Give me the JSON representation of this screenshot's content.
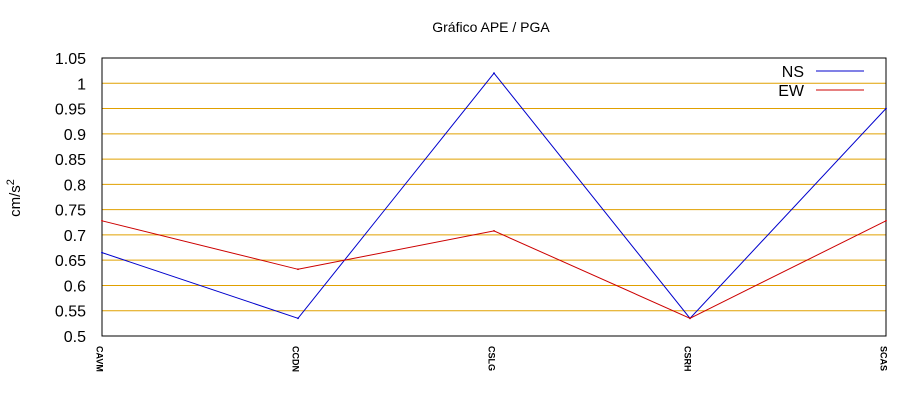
{
  "chart_data": {
    "type": "line",
    "title": "Gráfico  APE / PGA",
    "xlabel": "",
    "ylabel": "cm/s",
    "ylabel_superscript": "2",
    "categories": [
      "CAVM",
      "CCDN",
      "CSLG",
      "CSRH",
      "SCAS"
    ],
    "ylim": [
      0.5,
      1.05
    ],
    "yticks": [
      "0.5",
      "0.55",
      "0.6",
      "0.65",
      "0.7",
      "0.75",
      "0.8",
      "0.85",
      "0.9",
      "0.95",
      "1",
      "1.05"
    ],
    "grid": true,
    "legend_position": "top-right",
    "series": [
      {
        "name": "NS",
        "color": "#0000cc",
        "values": [
          0.665,
          0.535,
          1.02,
          0.535,
          0.95
        ]
      },
      {
        "name": "EW",
        "color": "#cc0000",
        "values": [
          0.728,
          0.632,
          0.708,
          0.535,
          0.728
        ]
      }
    ],
    "grid_color": "#e0a000"
  }
}
